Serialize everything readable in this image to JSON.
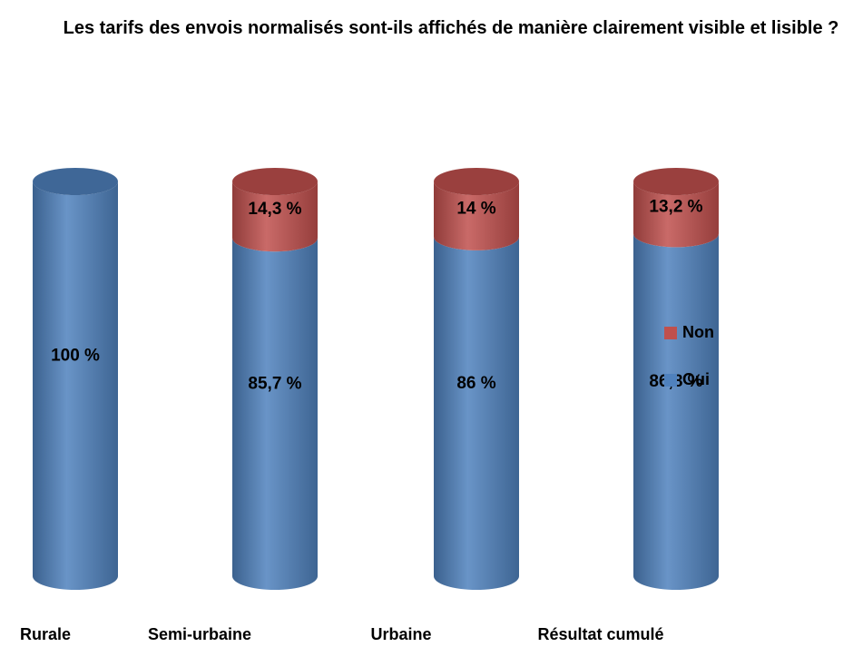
{
  "chart_data": {
    "type": "stacked-bar",
    "title": "Les tarifs des envois normalisés sont-ils affichés de manière clairement visible et lisible ?",
    "categories": [
      "Rurale",
      "Semi-urbaine",
      "Urbaine",
      "Résultat cumulé"
    ],
    "series": [
      {
        "name": "Oui",
        "color": "#4f81bd",
        "values": [
          100,
          85.7,
          86,
          86.8
        ],
        "value_labels": [
          "100 %",
          "85,7 %",
          "86 %",
          "86,8 %"
        ]
      },
      {
        "name": "Non",
        "color": "#c0504d",
        "values": [
          0,
          14.3,
          14,
          13.2
        ],
        "value_labels": [
          null,
          "14,3 %",
          "14 %",
          "13,2 %"
        ]
      }
    ],
    "legend": "right"
  }
}
